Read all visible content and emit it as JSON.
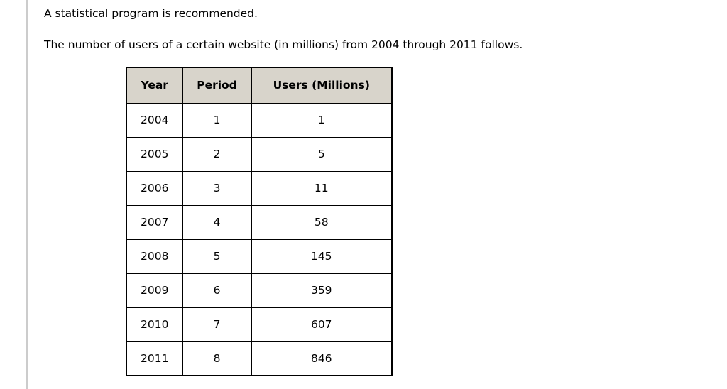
{
  "document": {
    "line1": "A statistical program is recommended.",
    "line2": "The number of users of a certain website (in millions) from 2004 through 2011 follows."
  },
  "table": {
    "headers": [
      "Year",
      "Period",
      "Users (Millions)"
    ],
    "rows": [
      [
        "2004",
        "1",
        "1"
      ],
      [
        "2005",
        "2",
        "5"
      ],
      [
        "2006",
        "3",
        "11"
      ],
      [
        "2007",
        "4",
        "58"
      ],
      [
        "2008",
        "5",
        "145"
      ],
      [
        "2009",
        "6",
        "359"
      ],
      [
        "2010",
        "7",
        "607"
      ],
      [
        "2011",
        "8",
        "846"
      ]
    ]
  },
  "colors": {
    "table_header_bg": "#d8d4cb",
    "table_border": "#000000",
    "left_rule": "#cccccc",
    "page_bg": "#ffffff"
  }
}
